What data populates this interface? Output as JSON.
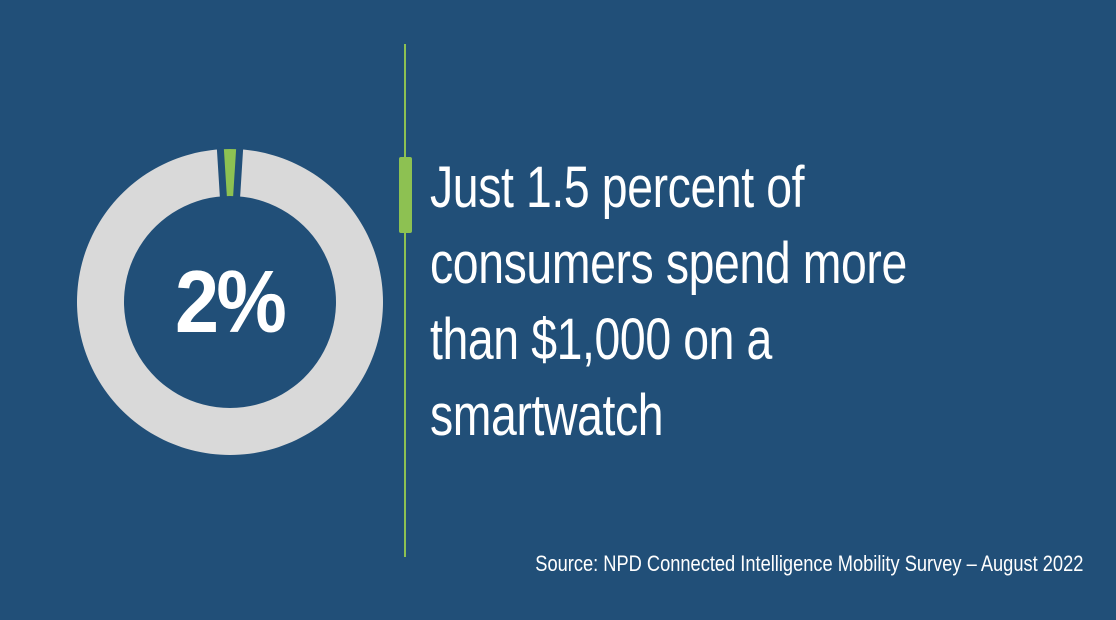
{
  "chart_data": {
    "type": "pie",
    "style": "donut",
    "center_label": "2%",
    "slices": [
      {
        "name": "highlight",
        "value": 2,
        "color": "#8DC152"
      },
      {
        "name": "remainder",
        "value": 98,
        "color": "#D9D9D9"
      }
    ],
    "first_slice_centered_at_top": true,
    "legend": "none"
  },
  "headline": {
    "text": "Just 1.5 percent of consumers spend more than $1,000 on a smartwatch",
    "lines": [
      "Just 1.5 percent of",
      "consumers spend more",
      "than $1,000 on a",
      "smartwatch"
    ]
  },
  "source": {
    "text": "Source: NPD Connected Intelligence Mobility Survey – August 2022"
  },
  "colors": {
    "background": "#214F78",
    "accent_green": "#8DC152",
    "ring_gray": "#D9D9D9",
    "text_white": "#FFFFFF"
  }
}
